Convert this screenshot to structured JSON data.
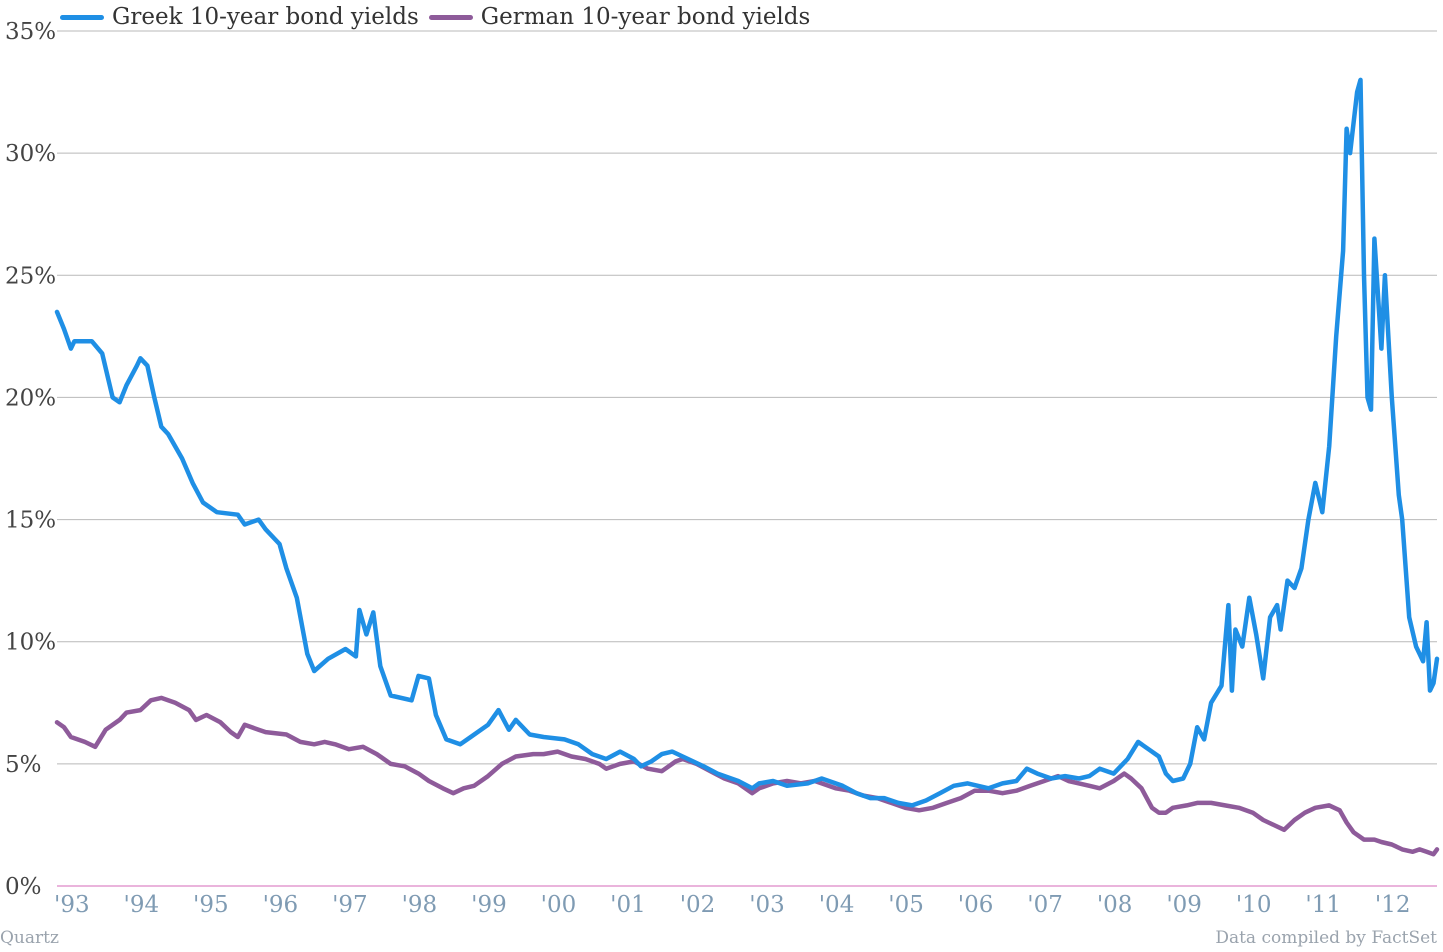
{
  "chart_data": {
    "type": "line",
    "title": "",
    "xlabel": "",
    "ylabel": "",
    "x_range": [
      1993.0,
      2012.85
    ],
    "ylim": [
      0,
      35
    ],
    "y_ticks": [
      {
        "value": 0,
        "label": "0%"
      },
      {
        "value": 5,
        "label": "5%"
      },
      {
        "value": 10,
        "label": "10%"
      },
      {
        "value": 15,
        "label": "15%"
      },
      {
        "value": 20,
        "label": "20%"
      },
      {
        "value": 25,
        "label": "25%"
      },
      {
        "value": 30,
        "label": "30%"
      },
      {
        "value": 35,
        "label": "35%"
      }
    ],
    "x_ticks": [
      {
        "value": 1993,
        "label": "'93"
      },
      {
        "value": 1994,
        "label": "'94"
      },
      {
        "value": 1995,
        "label": "'95"
      },
      {
        "value": 1996,
        "label": "'96"
      },
      {
        "value": 1997,
        "label": "'97"
      },
      {
        "value": 1998,
        "label": "'98"
      },
      {
        "value": 1999,
        "label": "'99"
      },
      {
        "value": 2000,
        "label": "'00"
      },
      {
        "value": 2001,
        "label": "'01"
      },
      {
        "value": 2002,
        "label": "'02"
      },
      {
        "value": 2003,
        "label": "'03"
      },
      {
        "value": 2004,
        "label": "'04"
      },
      {
        "value": 2005,
        "label": "'05"
      },
      {
        "value": 2006,
        "label": "'06"
      },
      {
        "value": 2007,
        "label": "'07"
      },
      {
        "value": 2008,
        "label": "'08"
      },
      {
        "value": 2009,
        "label": "'09"
      },
      {
        "value": 2010,
        "label": "'10"
      },
      {
        "value": 2011,
        "label": "'11"
      },
      {
        "value": 2012,
        "label": "'12"
      }
    ],
    "grid": true,
    "legend_position": "top-left",
    "series": [
      {
        "name": "Greek 10-year bond yields",
        "color": "#1f8fe5",
        "points": [
          [
            1993.0,
            23.5
          ],
          [
            1993.1,
            22.8
          ],
          [
            1993.2,
            22.0
          ],
          [
            1993.25,
            22.3
          ],
          [
            1993.5,
            22.3
          ],
          [
            1993.65,
            21.8
          ],
          [
            1993.8,
            20.0
          ],
          [
            1993.9,
            19.8
          ],
          [
            1994.0,
            20.5
          ],
          [
            1994.15,
            21.3
          ],
          [
            1994.2,
            21.6
          ],
          [
            1994.3,
            21.3
          ],
          [
            1994.4,
            20.0
          ],
          [
            1994.5,
            18.8
          ],
          [
            1994.6,
            18.5
          ],
          [
            1994.8,
            17.5
          ],
          [
            1994.95,
            16.5
          ],
          [
            1995.1,
            15.7
          ],
          [
            1995.3,
            15.3
          ],
          [
            1995.6,
            15.2
          ],
          [
            1995.7,
            14.8
          ],
          [
            1995.9,
            15.0
          ],
          [
            1996.0,
            14.6
          ],
          [
            1996.2,
            14.0
          ],
          [
            1996.3,
            13.0
          ],
          [
            1996.45,
            11.8
          ],
          [
            1996.6,
            9.5
          ],
          [
            1996.7,
            8.8
          ],
          [
            1996.9,
            9.3
          ],
          [
            1997.15,
            9.7
          ],
          [
            1997.3,
            9.4
          ],
          [
            1997.35,
            11.3
          ],
          [
            1997.45,
            10.3
          ],
          [
            1997.55,
            11.2
          ],
          [
            1997.65,
            9.0
          ],
          [
            1997.8,
            7.8
          ],
          [
            1998.1,
            7.6
          ],
          [
            1998.2,
            8.6
          ],
          [
            1998.35,
            8.5
          ],
          [
            1998.45,
            7.0
          ],
          [
            1998.6,
            6.0
          ],
          [
            1998.8,
            5.8
          ],
          [
            1998.95,
            6.1
          ],
          [
            1999.2,
            6.6
          ],
          [
            1999.35,
            7.2
          ],
          [
            1999.5,
            6.4
          ],
          [
            1999.6,
            6.8
          ],
          [
            1999.8,
            6.2
          ],
          [
            2000.0,
            6.1
          ],
          [
            2000.3,
            6.0
          ],
          [
            2000.5,
            5.8
          ],
          [
            2000.7,
            5.4
          ],
          [
            2000.9,
            5.2
          ],
          [
            2001.1,
            5.5
          ],
          [
            2001.3,
            5.2
          ],
          [
            2001.4,
            4.9
          ],
          [
            2001.55,
            5.1
          ],
          [
            2001.7,
            5.4
          ],
          [
            2001.85,
            5.5
          ],
          [
            2002.0,
            5.3
          ],
          [
            2002.3,
            4.9
          ],
          [
            2002.5,
            4.6
          ],
          [
            2002.8,
            4.3
          ],
          [
            2003.0,
            4.0
          ],
          [
            2003.1,
            4.2
          ],
          [
            2003.3,
            4.3
          ],
          [
            2003.5,
            4.1
          ],
          [
            2003.8,
            4.2
          ],
          [
            2004.0,
            4.4
          ],
          [
            2004.3,
            4.1
          ],
          [
            2004.5,
            3.8
          ],
          [
            2004.7,
            3.6
          ],
          [
            2004.9,
            3.6
          ],
          [
            2005.1,
            3.4
          ],
          [
            2005.3,
            3.3
          ],
          [
            2005.5,
            3.5
          ],
          [
            2005.7,
            3.8
          ],
          [
            2005.9,
            4.1
          ],
          [
            2006.1,
            4.2
          ],
          [
            2006.4,
            4.0
          ],
          [
            2006.6,
            4.2
          ],
          [
            2006.8,
            4.3
          ],
          [
            2006.95,
            4.8
          ],
          [
            2007.1,
            4.6
          ],
          [
            2007.3,
            4.4
          ],
          [
            2007.5,
            4.5
          ],
          [
            2007.7,
            4.4
          ],
          [
            2007.85,
            4.5
          ],
          [
            2008.0,
            4.8
          ],
          [
            2008.2,
            4.6
          ],
          [
            2008.4,
            5.2
          ],
          [
            2008.55,
            5.9
          ],
          [
            2008.7,
            5.6
          ],
          [
            2008.85,
            5.3
          ],
          [
            2008.95,
            4.6
          ],
          [
            2009.05,
            4.3
          ],
          [
            2009.2,
            4.4
          ],
          [
            2009.3,
            5.0
          ],
          [
            2009.4,
            6.5
          ],
          [
            2009.5,
            6.0
          ],
          [
            2009.6,
            7.5
          ],
          [
            2009.75,
            8.2
          ],
          [
            2009.85,
            11.5
          ],
          [
            2009.9,
            8.0
          ],
          [
            2009.95,
            10.5
          ],
          [
            2010.05,
            9.8
          ],
          [
            2010.15,
            11.8
          ],
          [
            2010.25,
            10.3
          ],
          [
            2010.35,
            8.5
          ],
          [
            2010.45,
            11.0
          ],
          [
            2010.55,
            11.5
          ],
          [
            2010.6,
            10.5
          ],
          [
            2010.7,
            12.5
          ],
          [
            2010.8,
            12.2
          ],
          [
            2010.9,
            13.0
          ],
          [
            2011.0,
            15.0
          ],
          [
            2011.1,
            16.5
          ],
          [
            2011.2,
            15.3
          ],
          [
            2011.3,
            18.0
          ],
          [
            2011.4,
            22.5
          ],
          [
            2011.5,
            26.0
          ],
          [
            2011.55,
            31.0
          ],
          [
            2011.6,
            30.0
          ],
          [
            2011.7,
            32.5
          ],
          [
            2011.75,
            33.0
          ],
          [
            2011.8,
            25.0
          ],
          [
            2011.85,
            20.0
          ],
          [
            2011.9,
            19.5
          ],
          [
            2011.95,
            26.5
          ],
          [
            2012.05,
            22.0
          ],
          [
            2012.1,
            25.0
          ],
          [
            2012.2,
            20.0
          ],
          [
            2012.3,
            16.0
          ],
          [
            2012.35,
            15.0
          ],
          [
            2012.45,
            11.0
          ],
          [
            2012.55,
            9.8
          ],
          [
            2012.6,
            9.5
          ],
          [
            2012.65,
            9.2
          ],
          [
            2012.7,
            10.8
          ],
          [
            2012.75,
            8.0
          ],
          [
            2012.8,
            8.3
          ],
          [
            2012.85,
            9.3
          ]
        ]
      },
      {
        "name": "German 10-year bond yields",
        "color": "#8e5b9a",
        "points": [
          [
            1993.0,
            6.7
          ],
          [
            1993.1,
            6.5
          ],
          [
            1993.2,
            6.1
          ],
          [
            1993.4,
            5.9
          ],
          [
            1993.55,
            5.7
          ],
          [
            1993.7,
            6.4
          ],
          [
            1993.9,
            6.8
          ],
          [
            1994.0,
            7.1
          ],
          [
            1994.2,
            7.2
          ],
          [
            1994.35,
            7.6
          ],
          [
            1994.5,
            7.7
          ],
          [
            1994.7,
            7.5
          ],
          [
            1994.9,
            7.2
          ],
          [
            1995.0,
            6.8
          ],
          [
            1995.15,
            7.0
          ],
          [
            1995.35,
            6.7
          ],
          [
            1995.5,
            6.3
          ],
          [
            1995.6,
            6.1
          ],
          [
            1995.7,
            6.6
          ],
          [
            1995.9,
            6.4
          ],
          [
            1996.0,
            6.3
          ],
          [
            1996.3,
            6.2
          ],
          [
            1996.5,
            5.9
          ],
          [
            1996.7,
            5.8
          ],
          [
            1996.85,
            5.9
          ],
          [
            1997.0,
            5.8
          ],
          [
            1997.2,
            5.6
          ],
          [
            1997.4,
            5.7
          ],
          [
            1997.6,
            5.4
          ],
          [
            1997.8,
            5.0
          ],
          [
            1998.0,
            4.9
          ],
          [
            1998.2,
            4.6
          ],
          [
            1998.35,
            4.3
          ],
          [
            1998.55,
            4.0
          ],
          [
            1998.7,
            3.8
          ],
          [
            1998.85,
            4.0
          ],
          [
            1999.0,
            4.1
          ],
          [
            1999.2,
            4.5
          ],
          [
            1999.4,
            5.0
          ],
          [
            1999.6,
            5.3
          ],
          [
            1999.85,
            5.4
          ],
          [
            2000.0,
            5.4
          ],
          [
            2000.2,
            5.5
          ],
          [
            2000.4,
            5.3
          ],
          [
            2000.6,
            5.2
          ],
          [
            2000.8,
            5.0
          ],
          [
            2000.9,
            4.8
          ],
          [
            2001.1,
            5.0
          ],
          [
            2001.3,
            5.1
          ],
          [
            2001.5,
            4.8
          ],
          [
            2001.7,
            4.7
          ],
          [
            2001.9,
            5.1
          ],
          [
            2002.0,
            5.2
          ],
          [
            2002.2,
            5.0
          ],
          [
            2002.4,
            4.7
          ],
          [
            2002.6,
            4.4
          ],
          [
            2002.8,
            4.2
          ],
          [
            2003.0,
            3.8
          ],
          [
            2003.1,
            4.0
          ],
          [
            2003.3,
            4.2
          ],
          [
            2003.5,
            4.3
          ],
          [
            2003.7,
            4.2
          ],
          [
            2003.9,
            4.3
          ],
          [
            2004.0,
            4.2
          ],
          [
            2004.2,
            4.0
          ],
          [
            2004.4,
            3.9
          ],
          [
            2004.6,
            3.7
          ],
          [
            2004.8,
            3.6
          ],
          [
            2005.0,
            3.4
          ],
          [
            2005.2,
            3.2
          ],
          [
            2005.4,
            3.1
          ],
          [
            2005.6,
            3.2
          ],
          [
            2005.8,
            3.4
          ],
          [
            2006.0,
            3.6
          ],
          [
            2006.2,
            3.9
          ],
          [
            2006.4,
            3.9
          ],
          [
            2006.6,
            3.8
          ],
          [
            2006.8,
            3.9
          ],
          [
            2007.0,
            4.1
          ],
          [
            2007.2,
            4.3
          ],
          [
            2007.4,
            4.5
          ],
          [
            2007.55,
            4.3
          ],
          [
            2007.7,
            4.2
          ],
          [
            2007.85,
            4.1
          ],
          [
            2008.0,
            4.0
          ],
          [
            2008.2,
            4.3
          ],
          [
            2008.35,
            4.6
          ],
          [
            2008.45,
            4.4
          ],
          [
            2008.6,
            4.0
          ],
          [
            2008.75,
            3.2
          ],
          [
            2008.85,
            3.0
          ],
          [
            2008.95,
            3.0
          ],
          [
            2009.05,
            3.2
          ],
          [
            2009.25,
            3.3
          ],
          [
            2009.4,
            3.4
          ],
          [
            2009.6,
            3.4
          ],
          [
            2009.8,
            3.3
          ],
          [
            2010.0,
            3.2
          ],
          [
            2010.2,
            3.0
          ],
          [
            2010.35,
            2.7
          ],
          [
            2010.5,
            2.5
          ],
          [
            2010.65,
            2.3
          ],
          [
            2010.8,
            2.7
          ],
          [
            2010.95,
            3.0
          ],
          [
            2011.1,
            3.2
          ],
          [
            2011.3,
            3.3
          ],
          [
            2011.45,
            3.1
          ],
          [
            2011.55,
            2.6
          ],
          [
            2011.65,
            2.2
          ],
          [
            2011.8,
            1.9
          ],
          [
            2011.95,
            1.9
          ],
          [
            2012.05,
            1.8
          ],
          [
            2012.2,
            1.7
          ],
          [
            2012.35,
            1.5
          ],
          [
            2012.5,
            1.4
          ],
          [
            2012.6,
            1.5
          ],
          [
            2012.7,
            1.4
          ],
          [
            2012.8,
            1.3
          ],
          [
            2012.85,
            1.5
          ]
        ]
      }
    ]
  },
  "legend": {
    "items": [
      {
        "label": "Greek 10-year bond yields",
        "color": "#1f8fe5"
      },
      {
        "label": "German 10-year bond yields",
        "color": "#8e5b9a"
      }
    ]
  },
  "footer": {
    "source_left": "Quartz",
    "source_right": "Data compiled by FactSet"
  }
}
